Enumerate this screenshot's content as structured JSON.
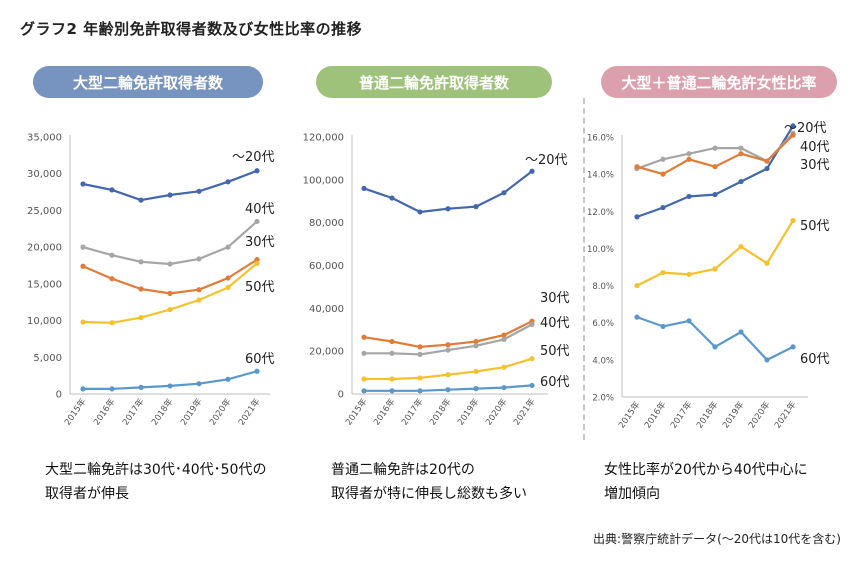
{
  "title": "グラフ2 年齢別免許取得者数及び女性比率の推移",
  "source": "出典:警察庁統計データ(～20代は10代を含む)",
  "colors": {
    "under20": "#4367ad",
    "age40": "#a5a5a5",
    "age30": "#e07b39",
    "age50": "#f5c12e",
    "age60": "#5a98cc"
  },
  "panels": [
    {
      "header": "大型二輪免許取得者数",
      "caption_line1": "大型二輪免許は30代･40代･50代の",
      "caption_line2": "取得者が伸長"
    },
    {
      "header": "普通二輪免許取得者数",
      "caption_line1": "普通二輪免許は20代の",
      "caption_line2": "取得者が特に伸長し総数も多い"
    },
    {
      "header": "大型＋普通二輪免許女性比率",
      "caption_line1": "女性比率が20代から40代中心に",
      "caption_line2": "増加傾向"
    }
  ],
  "chart_data": [
    {
      "type": "line",
      "title": "大型二輪免許取得者数",
      "x": [
        "2015年",
        "2016年",
        "2017年",
        "2018年",
        "2019年",
        "2020年",
        "2021年"
      ],
      "ylim": [
        0,
        35000
      ],
      "yticks": [
        "0",
        "5,000",
        "10,000",
        "15,000",
        "20,000",
        "25,000",
        "30,000",
        "35,000"
      ],
      "grid": false,
      "series": [
        {
          "name": "～20代",
          "key": "under20",
          "values": [
            28600,
            27800,
            26400,
            27100,
            27600,
            28900,
            30400
          ]
        },
        {
          "name": "40代",
          "key": "age40",
          "values": [
            20000,
            18900,
            18000,
            17700,
            18400,
            20000,
            23500
          ]
        },
        {
          "name": "30代",
          "key": "age30",
          "values": [
            17400,
            15700,
            14300,
            13700,
            14200,
            15800,
            18300
          ]
        },
        {
          "name": "50代",
          "key": "age50",
          "values": [
            9800,
            9700,
            10400,
            11500,
            12800,
            14500,
            17800
          ]
        },
        {
          "name": "60代",
          "key": "age60",
          "values": [
            700,
            700,
            900,
            1100,
            1400,
            2000,
            3100
          ]
        }
      ]
    },
    {
      "type": "line",
      "title": "普通二輪免許取得者数",
      "x": [
        "2015年",
        "2016年",
        "2017年",
        "2018年",
        "2019年",
        "2020年",
        "2021年"
      ],
      "ylim": [
        0,
        120000
      ],
      "yticks": [
        "0",
        "20,000",
        "40,000",
        "60,000",
        "80,000",
        "100,000",
        "120,000"
      ],
      "grid": false,
      "series": [
        {
          "name": "～20代",
          "key": "under20",
          "values": [
            96000,
            91500,
            85000,
            86500,
            87500,
            94000,
            104000
          ]
        },
        {
          "name": "30代",
          "key": "age30",
          "values": [
            26500,
            24500,
            22000,
            23000,
            24500,
            27500,
            34000
          ]
        },
        {
          "name": "40代",
          "key": "age40",
          "values": [
            19000,
            19000,
            18500,
            20500,
            22500,
            25500,
            32500
          ]
        },
        {
          "name": "50代",
          "key": "age50",
          "values": [
            7000,
            7000,
            7500,
            9000,
            10500,
            12500,
            16500
          ]
        },
        {
          "name": "60代",
          "key": "age60",
          "values": [
            1500,
            1500,
            1500,
            2000,
            2500,
            3000,
            4000
          ]
        }
      ]
    },
    {
      "type": "line",
      "title": "大型＋普通二輪免許女性比率",
      "x": [
        "2015年",
        "2016年",
        "2017年",
        "2018年",
        "2019年",
        "2020年",
        "2021年"
      ],
      "ylim": [
        2.0,
        16.0
      ],
      "yticks": [
        "2.0%",
        "4.0%",
        "6.0%",
        "8.0%",
        "10.0%",
        "12.0%",
        "14.0%",
        "16.0%"
      ],
      "grid": false,
      "series": [
        {
          "name": "～20代",
          "key": "under20",
          "values": [
            11.7,
            12.2,
            12.8,
            12.9,
            13.6,
            14.3,
            16.6
          ]
        },
        {
          "name": "40代",
          "key": "age40",
          "values": [
            14.3,
            14.8,
            15.1,
            15.4,
            15.4,
            14.7,
            16.2
          ]
        },
        {
          "name": "30代",
          "key": "age30",
          "values": [
            14.4,
            14.0,
            14.8,
            14.4,
            15.1,
            14.7,
            16.1
          ]
        },
        {
          "name": "50代",
          "key": "age50",
          "values": [
            8.0,
            8.7,
            8.6,
            8.9,
            10.1,
            9.2,
            11.5
          ]
        },
        {
          "name": "60代",
          "key": "age60",
          "values": [
            6.3,
            5.8,
            6.1,
            4.7,
            5.5,
            4.0,
            4.7
          ]
        }
      ]
    }
  ]
}
